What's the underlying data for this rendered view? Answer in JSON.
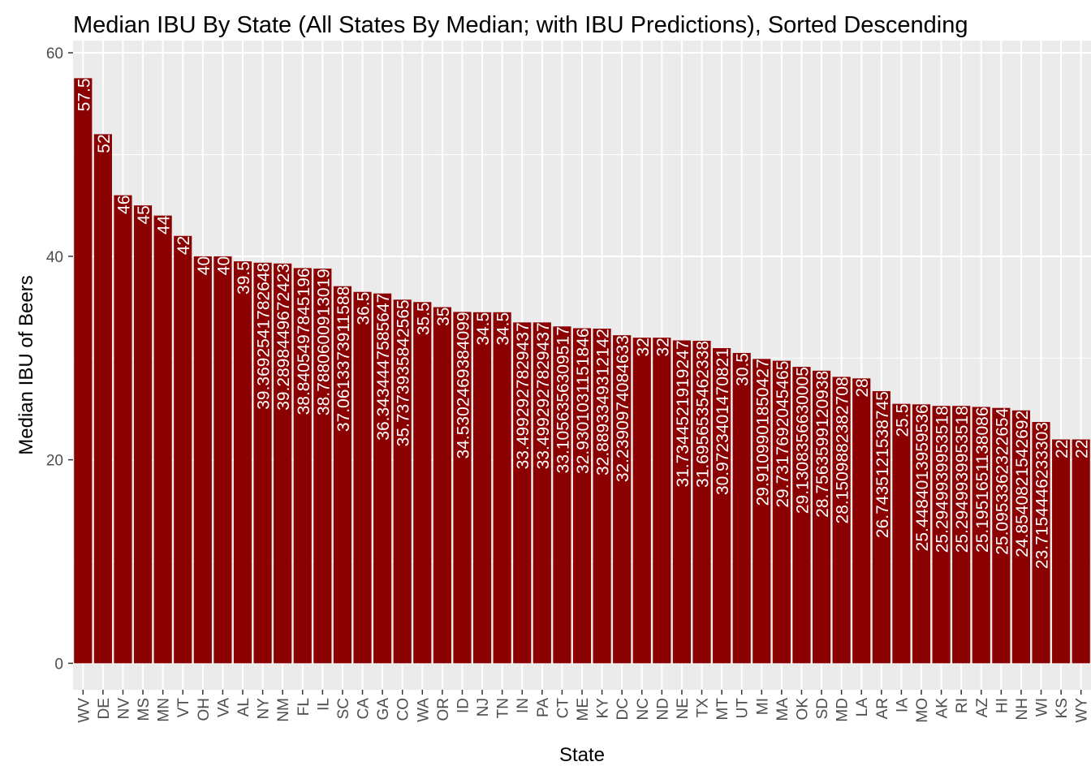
{
  "chart_data": {
    "type": "bar",
    "title": "Median IBU By State (All States By Median; with IBU Predictions), Sorted Descending",
    "xlabel": "State",
    "ylabel": "Median IBU of Beers",
    "ylim": [
      -2.6,
      61.2
    ],
    "yticks": [
      0,
      20,
      40,
      60
    ],
    "grid": true,
    "bar_color": "#8B0000",
    "panel_color": "#EBEBEB",
    "categories": [
      "WV",
      "DE",
      "NV",
      "MS",
      "MN",
      "VT",
      "OH",
      "VA",
      "AL",
      "NY",
      "NM",
      "FL",
      "IL",
      "SC",
      "CA",
      "GA",
      "CO",
      "WA",
      "OR",
      "ID",
      "NJ",
      "TN",
      "IN",
      "PA",
      "CT",
      "ME",
      "KY",
      "DC",
      "NC",
      "ND",
      "NE",
      "TX",
      "MT",
      "UT",
      "MI",
      "MA",
      "OK",
      "SD",
      "MD",
      "LA",
      "AR",
      "IA",
      "MO",
      "AK",
      "RI",
      "AZ",
      "HI",
      "NH",
      "WI",
      "KS",
      "WY"
    ],
    "values": [
      57.5,
      52,
      46,
      45,
      44,
      42,
      40,
      40,
      39.5,
      39.3692541782648,
      39.2898449672423,
      38.8405497845196,
      38.7880600913019,
      37.0613373911588,
      36.5,
      36.3434447585647,
      35.7373935842565,
      35.5,
      35,
      34.5302469384099,
      34.5,
      34.5,
      33.4992927829437,
      33.4992927829437,
      33.1056356309517,
      32.9301031151846,
      32.8893349312142,
      32.2390974084633,
      32,
      32,
      31.7344521919247,
      31.6956535462338,
      30.9723401470821,
      30.5,
      29.9109901850427,
      29.7317692045465,
      29.1308356630005,
      28.7563599120938,
      28.1509882382708,
      28,
      26.7435121538745,
      25.5,
      25.4484013959536,
      25.2949939953518,
      25.2949939953518,
      25.1951651138086,
      25.0953362322654,
      24.8540821542692,
      23.7154446233303,
      22,
      22
    ],
    "labels": [
      "57.5",
      "52",
      "46",
      "45",
      "44",
      "42",
      "40",
      "40",
      "39.5",
      "39.3692541782648",
      "39.2898449672423",
      "38.8405497845196",
      "38.7880600913019",
      "37.0613373911588",
      "36.5",
      "36.3434447585647",
      "35.7373935842565",
      "35.5",
      "35",
      "34.5302469384099",
      "34.5",
      "34.5",
      "33.4992927829437",
      "33.4992927829437",
      "33.1056356309517",
      "32.9301031151846",
      "32.8893349312142",
      "32.2390974084633",
      "32",
      "32",
      "31.7344521919247",
      "31.6956535462338",
      "30.9723401470821",
      "30.5",
      "29.9109901850427",
      "29.7317692045465",
      "29.1308356630005",
      "28.7563599120938",
      "28.1509882382708",
      "28",
      "26.7435121538745",
      "25.5",
      "25.4484013959536",
      "25.2949939953518",
      "25.2949939953518",
      "25.1951651138086",
      "25.0953362322654",
      "24.8540821542692",
      "23.7154446233303",
      "22",
      "22"
    ]
  }
}
